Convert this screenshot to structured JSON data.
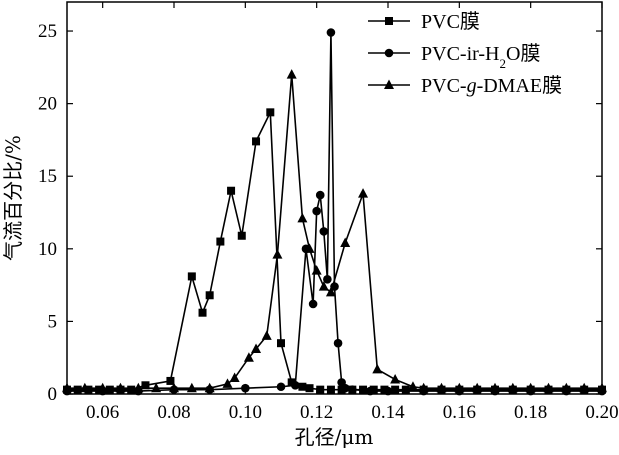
{
  "chart_data": {
    "type": "line",
    "title": "",
    "xlabel": "孔径/μm",
    "ylabel": "气流百分比/%",
    "xlim": [
      0.05,
      0.2
    ],
    "ylim": [
      0,
      27
    ],
    "xticks": [
      0.06,
      0.08,
      0.1,
      0.12,
      0.14,
      0.16,
      0.18,
      0.2
    ],
    "xtick_labels": [
      "0.06",
      "0.08",
      "0.10",
      "0.12",
      "0.14",
      "0.16",
      "0.18",
      "0.20"
    ],
    "yticks": [
      0,
      5,
      10,
      15,
      20,
      25
    ],
    "ytick_labels": [
      "0",
      "5",
      "10",
      "15",
      "20",
      "25"
    ],
    "grid": false,
    "legend_position": "top-right",
    "series": [
      {
        "name": "PVC膜",
        "legend_parts": [
          {
            "text": "PVC膜",
            "sub": false
          }
        ],
        "marker": "square",
        "x": [
          0.05,
          0.053,
          0.056,
          0.059,
          0.062,
          0.065,
          0.068,
          0.072,
          0.079,
          0.085,
          0.088,
          0.09,
          0.093,
          0.096,
          0.099,
          0.103,
          0.107,
          0.11,
          0.113,
          0.116,
          0.118,
          0.121,
          0.124,
          0.127,
          0.13,
          0.133,
          0.136,
          0.139,
          0.142,
          0.145,
          0.15,
          0.155,
          0.16,
          0.165,
          0.17,
          0.175,
          0.18,
          0.185,
          0.19,
          0.195,
          0.2
        ],
        "y": [
          0.3,
          0.3,
          0.3,
          0.3,
          0.3,
          0.3,
          0.3,
          0.6,
          0.9,
          8.1,
          5.6,
          6.8,
          10.5,
          14.0,
          10.9,
          17.4,
          19.4,
          3.5,
          0.8,
          0.5,
          0.4,
          0.3,
          0.3,
          0.3,
          0.3,
          0.3,
          0.3,
          0.3,
          0.3,
          0.3,
          0.3,
          0.3,
          0.3,
          0.3,
          0.3,
          0.3,
          0.3,
          0.3,
          0.3,
          0.3,
          0.3
        ]
      },
      {
        "name": "PVC-ir-H2O膜",
        "legend_parts": [
          {
            "text": "PVC-ir-H",
            "sub": false
          },
          {
            "text": "2",
            "sub": true
          },
          {
            "text": "O膜",
            "sub": false
          }
        ],
        "marker": "circle",
        "x": [
          0.05,
          0.06,
          0.07,
          0.08,
          0.09,
          0.1,
          0.11,
          0.114,
          0.117,
          0.119,
          0.12,
          0.121,
          0.122,
          0.123,
          0.124,
          0.125,
          0.126,
          0.127,
          0.128,
          0.13,
          0.135,
          0.14,
          0.15,
          0.16,
          0.17,
          0.18,
          0.19,
          0.2
        ],
        "y": [
          0.2,
          0.2,
          0.2,
          0.3,
          0.3,
          0.4,
          0.5,
          0.6,
          10.0,
          6.2,
          12.6,
          13.7,
          11.2,
          7.9,
          24.9,
          7.4,
          3.5,
          0.8,
          0.4,
          0.3,
          0.2,
          0.2,
          0.2,
          0.2,
          0.2,
          0.2,
          0.2,
          0.2
        ]
      },
      {
        "name": "PVC-g-DMAE膜",
        "legend_parts": [
          {
            "text": "PVC-",
            "sub": false
          },
          {
            "text": "g",
            "sub": false,
            "italic": true
          },
          {
            "text": "-DMAE膜",
            "sub": false
          }
        ],
        "marker": "triangle",
        "x": [
          0.05,
          0.055,
          0.06,
          0.065,
          0.07,
          0.075,
          0.08,
          0.085,
          0.09,
          0.095,
          0.097,
          0.101,
          0.103,
          0.106,
          0.109,
          0.113,
          0.116,
          0.118,
          0.12,
          0.122,
          0.124,
          0.128,
          0.133,
          0.137,
          0.142,
          0.147,
          0.15,
          0.155,
          0.16,
          0.165,
          0.17,
          0.175,
          0.18,
          0.185,
          0.19,
          0.195,
          0.2
        ],
        "y": [
          0.4,
          0.4,
          0.4,
          0.4,
          0.4,
          0.4,
          0.4,
          0.4,
          0.4,
          0.7,
          1.1,
          2.5,
          3.1,
          4.0,
          9.6,
          22.0,
          12.1,
          10.0,
          8.5,
          7.4,
          7.0,
          10.4,
          13.8,
          1.7,
          1.0,
          0.5,
          0.4,
          0.4,
          0.4,
          0.4,
          0.4,
          0.4,
          0.4,
          0.4,
          0.4,
          0.4,
          0.4
        ]
      }
    ]
  }
}
